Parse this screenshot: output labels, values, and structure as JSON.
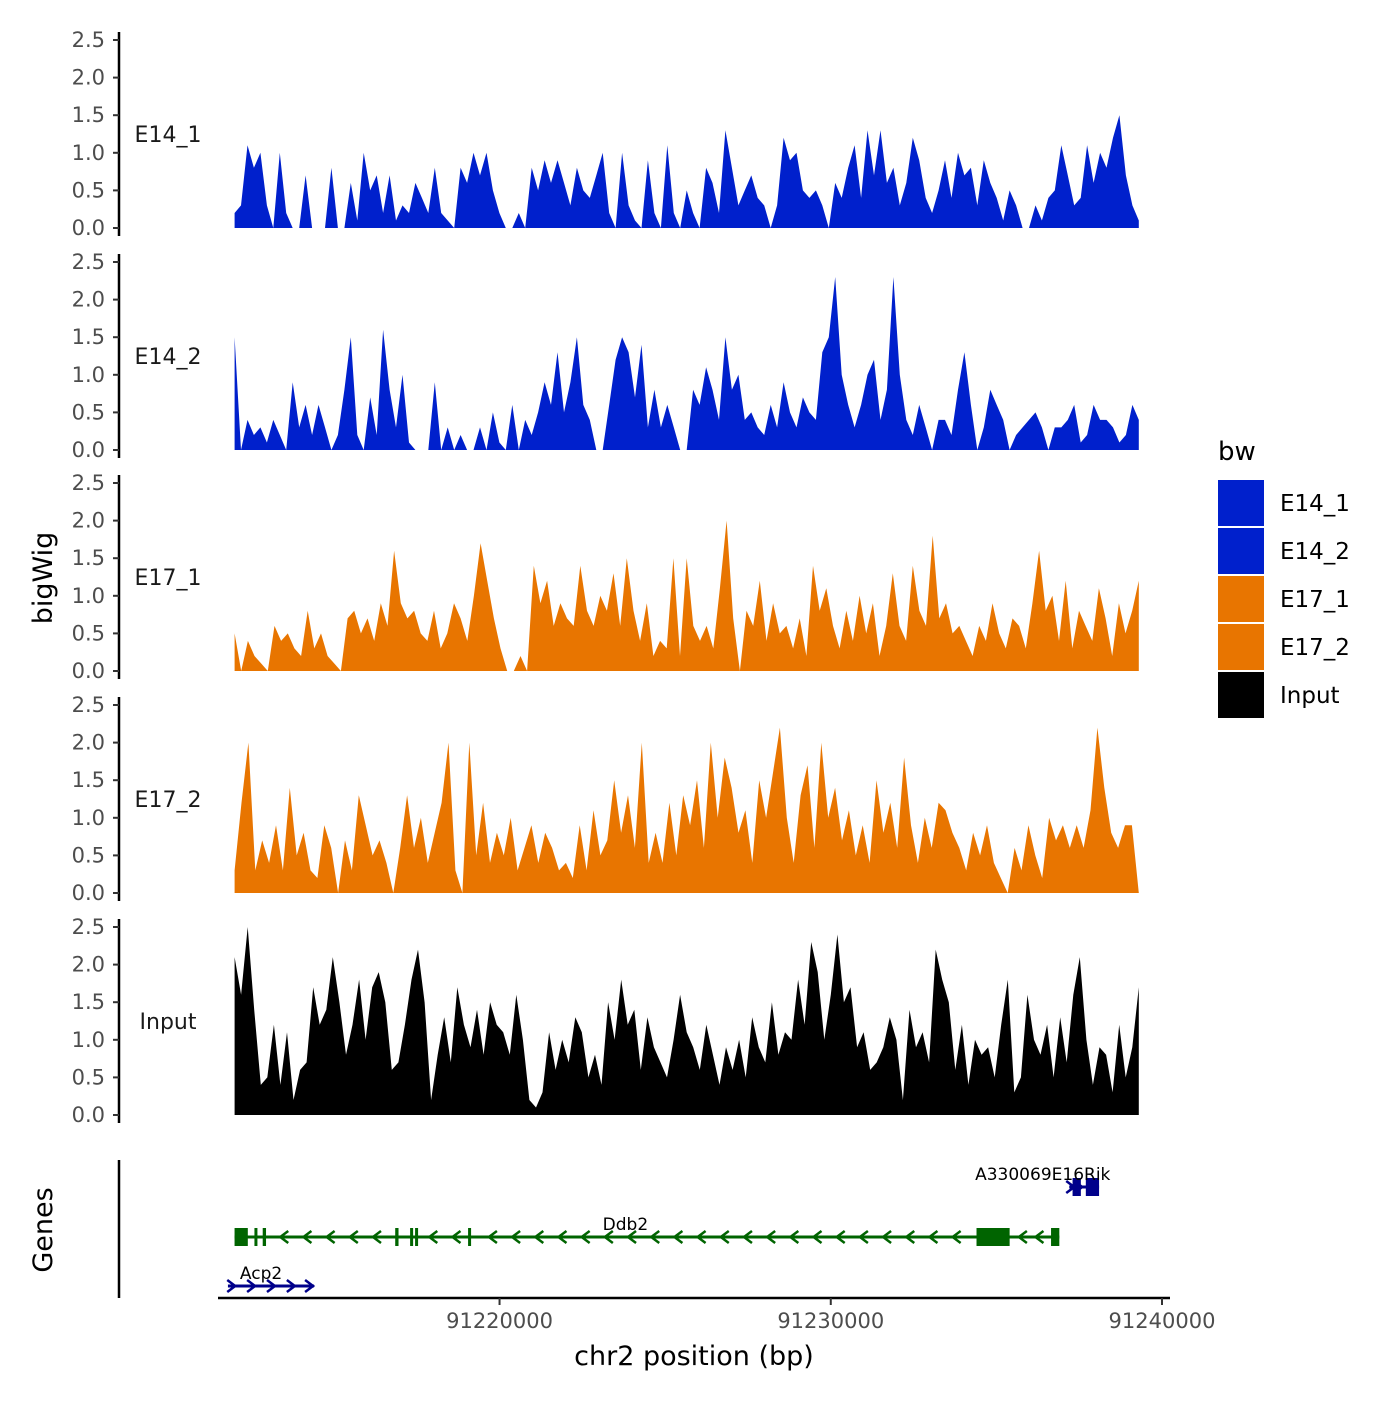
{
  "chart_data": {
    "type": "area",
    "title": "",
    "ylabel": "bigWig",
    "xlabel": "chr2 position (bp)",
    "genes_label": "Genes",
    "xlim": [
      91211500,
      91240000
    ],
    "ylim": [
      0,
      2.5
    ],
    "yticks": [
      "0.0",
      "0.5",
      "1.0",
      "1.5",
      "2.0",
      "2.5"
    ],
    "xticks": [
      {
        "value": 91220000,
        "label": "91220000"
      },
      {
        "value": 91230000,
        "label": "91230000"
      },
      {
        "value": 91240000,
        "label": "91240000"
      }
    ],
    "x_start": 91212000,
    "x_end": 91239300,
    "series": [
      {
        "name": "E14_1",
        "color": "#0020CC",
        "values": [
          0.2,
          0.3,
          1.1,
          0.8,
          1.0,
          0.3,
          0.0,
          1.0,
          0.2,
          0.0,
          0.0,
          0.7,
          0.0,
          0.0,
          0.0,
          0.8,
          0.0,
          0.0,
          0.6,
          0.1,
          1.0,
          0.5,
          0.7,
          0.2,
          0.7,
          0.1,
          0.3,
          0.2,
          0.6,
          0.4,
          0.2,
          0.8,
          0.2,
          0.1,
          0.0,
          0.8,
          0.6,
          1.0,
          0.7,
          1.0,
          0.5,
          0.2,
          0.0,
          0.0,
          0.2,
          0.0,
          0.8,
          0.5,
          0.9,
          0.6,
          0.9,
          0.6,
          0.3,
          0.8,
          0.5,
          0.4,
          0.7,
          1.0,
          0.2,
          0.0,
          1.0,
          0.3,
          0.1,
          0.0,
          0.9,
          0.2,
          0.0,
          1.1,
          0.2,
          0.0,
          0.5,
          0.2,
          0.0,
          0.8,
          0.6,
          0.2,
          1.3,
          0.8,
          0.3,
          0.5,
          0.7,
          0.4,
          0.3,
          0.0,
          0.3,
          1.2,
          0.9,
          1.0,
          0.5,
          0.4,
          0.5,
          0.3,
          0.0,
          0.6,
          0.4,
          0.8,
          1.1,
          0.4,
          1.3,
          0.7,
          1.3,
          0.6,
          0.8,
          0.3,
          0.6,
          1.2,
          0.9,
          0.4,
          0.2,
          0.5,
          0.9,
          0.4,
          1.0,
          0.7,
          0.8,
          0.3,
          0.9,
          0.6,
          0.4,
          0.1,
          0.5,
          0.3,
          0.0,
          0.0,
          0.3,
          0.1,
          0.4,
          0.5,
          1.1,
          0.7,
          0.3,
          0.4,
          1.1,
          0.6,
          1.0,
          0.8,
          1.2,
          1.5,
          0.7,
          0.3,
          0.1
        ]
      },
      {
        "name": "E14_2",
        "color": "#0020CC",
        "values": [
          1.5,
          0.0,
          0.4,
          0.2,
          0.3,
          0.1,
          0.4,
          0.2,
          0.0,
          0.9,
          0.3,
          0.6,
          0.2,
          0.6,
          0.3,
          0.0,
          0.2,
          0.8,
          1.5,
          0.2,
          0.0,
          0.7,
          0.2,
          1.6,
          0.8,
          0.3,
          1.0,
          0.1,
          0.0,
          0.0,
          0.0,
          0.9,
          0.0,
          0.3,
          0.0,
          0.2,
          0.0,
          0.0,
          0.3,
          0.0,
          0.5,
          0.1,
          0.0,
          0.6,
          0.0,
          0.4,
          0.2,
          0.5,
          0.9,
          0.6,
          1.3,
          0.5,
          0.9,
          1.5,
          0.6,
          0.4,
          0.0,
          0.0,
          0.6,
          1.2,
          1.5,
          1.3,
          0.7,
          1.4,
          0.3,
          0.8,
          0.3,
          0.6,
          0.3,
          0.0,
          0.0,
          0.8,
          0.6,
          1.1,
          0.8,
          0.4,
          1.5,
          0.8,
          1.0,
          0.4,
          0.5,
          0.3,
          0.2,
          0.6,
          0.3,
          0.9,
          0.5,
          0.3,
          0.7,
          0.5,
          0.4,
          1.3,
          1.5,
          2.3,
          1.0,
          0.6,
          0.3,
          0.6,
          1.0,
          1.2,
          0.4,
          0.8,
          2.3,
          1.0,
          0.4,
          0.2,
          0.6,
          0.3,
          0.0,
          0.4,
          0.4,
          0.2,
          0.8,
          1.3,
          0.6,
          0.0,
          0.3,
          0.8,
          0.6,
          0.4,
          0.0,
          0.2,
          0.3,
          0.4,
          0.5,
          0.3,
          0.0,
          0.3,
          0.3,
          0.4,
          0.6,
          0.1,
          0.2,
          0.6,
          0.4,
          0.4,
          0.3,
          0.1,
          0.2,
          0.6,
          0.4
        ]
      },
      {
        "name": "E17_1",
        "color": "#E87500",
        "values": [
          0.5,
          0.0,
          0.4,
          0.2,
          0.1,
          0.0,
          0.6,
          0.4,
          0.5,
          0.3,
          0.2,
          0.8,
          0.3,
          0.5,
          0.2,
          0.1,
          0.0,
          0.7,
          0.8,
          0.5,
          0.7,
          0.4,
          0.9,
          0.6,
          1.6,
          0.9,
          0.7,
          0.8,
          0.5,
          0.4,
          0.8,
          0.3,
          0.5,
          0.9,
          0.7,
          0.4,
          1.0,
          1.7,
          1.2,
          0.7,
          0.3,
          0.0,
          0.0,
          0.2,
          0.0,
          1.4,
          0.9,
          1.2,
          0.6,
          0.9,
          0.7,
          0.6,
          1.4,
          0.8,
          0.6,
          1.0,
          0.8,
          1.3,
          0.6,
          1.5,
          0.8,
          0.4,
          0.9,
          0.2,
          0.4,
          0.3,
          1.5,
          0.2,
          1.5,
          0.6,
          0.4,
          0.6,
          0.3,
          1.1,
          2.0,
          0.7,
          0.0,
          0.8,
          0.6,
          1.2,
          0.4,
          0.9,
          0.5,
          0.6,
          0.3,
          0.7,
          0.2,
          1.4,
          0.8,
          1.1,
          0.6,
          0.3,
          0.8,
          0.4,
          1.0,
          0.5,
          0.9,
          0.2,
          0.6,
          1.3,
          0.6,
          0.4,
          1.4,
          0.8,
          0.6,
          1.8,
          0.7,
          0.9,
          0.5,
          0.6,
          0.4,
          0.2,
          0.6,
          0.4,
          0.9,
          0.5,
          0.3,
          0.7,
          0.6,
          0.3,
          0.9,
          1.6,
          0.8,
          1.0,
          0.4,
          1.2,
          0.3,
          0.8,
          0.6,
          0.4,
          1.1,
          0.7,
          0.2,
          0.9,
          0.5,
          0.8,
          1.2
        ]
      },
      {
        "name": "E17_2",
        "color": "#E87500",
        "values": [
          0.3,
          1.2,
          2.0,
          0.3,
          0.7,
          0.4,
          0.9,
          0.3,
          1.4,
          0.5,
          0.8,
          0.3,
          0.2,
          0.9,
          0.6,
          0.0,
          0.7,
          0.3,
          1.3,
          0.9,
          0.5,
          0.7,
          0.4,
          0.0,
          0.6,
          1.3,
          0.6,
          1.0,
          0.4,
          0.8,
          1.2,
          2.0,
          0.3,
          0.0,
          2.0,
          0.5,
          1.2,
          0.4,
          0.8,
          0.5,
          1.0,
          0.3,
          0.6,
          0.9,
          0.4,
          0.8,
          0.6,
          0.3,
          0.4,
          0.2,
          0.9,
          0.3,
          1.1,
          0.5,
          0.7,
          1.5,
          0.8,
          1.3,
          0.6,
          2.0,
          0.4,
          0.8,
          0.4,
          1.2,
          0.5,
          1.3,
          0.9,
          1.5,
          0.6,
          2.0,
          1.0,
          1.8,
          1.4,
          0.8,
          1.1,
          0.4,
          1.5,
          1.0,
          1.6,
          2.2,
          1.0,
          0.4,
          1.3,
          1.7,
          0.6,
          2.0,
          1.0,
          1.4,
          0.7,
          1.1,
          0.5,
          0.9,
          0.4,
          1.5,
          0.8,
          1.2,
          0.6,
          1.8,
          0.9,
          0.4,
          1.0,
          0.6,
          1.2,
          1.1,
          0.8,
          0.6,
          0.3,
          0.8,
          0.5,
          0.9,
          0.4,
          0.2,
          0.0,
          0.6,
          0.3,
          0.9,
          0.5,
          0.2,
          1.0,
          0.7,
          0.9,
          0.6,
          0.9,
          0.6,
          1.1,
          2.2,
          1.4,
          0.8,
          0.6,
          0.9,
          0.9,
          0.0
        ]
      },
      {
        "name": "Input",
        "color": "#000000",
        "values": [
          2.1,
          1.6,
          2.5,
          1.4,
          0.4,
          0.5,
          1.2,
          0.4,
          1.1,
          0.2,
          0.6,
          0.7,
          1.7,
          1.2,
          1.4,
          2.1,
          1.5,
          0.8,
          1.2,
          1.8,
          1.0,
          1.7,
          1.9,
          1.5,
          0.6,
          0.7,
          1.2,
          1.8,
          2.2,
          1.5,
          0.2,
          0.8,
          1.3,
          0.7,
          1.7,
          1.2,
          0.9,
          1.4,
          0.8,
          1.5,
          1.2,
          1.1,
          0.8,
          1.6,
          1.0,
          0.2,
          0.1,
          0.3,
          1.1,
          0.6,
          1.0,
          0.7,
          1.3,
          1.1,
          0.5,
          0.8,
          0.4,
          1.5,
          1.0,
          1.8,
          1.2,
          1.4,
          0.6,
          1.3,
          0.9,
          0.7,
          0.5,
          1.0,
          1.6,
          1.1,
          0.9,
          0.6,
          1.2,
          0.8,
          0.4,
          0.9,
          0.6,
          1.0,
          0.5,
          1.3,
          0.9,
          0.7,
          1.5,
          0.8,
          1.1,
          1.0,
          1.8,
          1.2,
          2.3,
          1.9,
          1.0,
          1.6,
          2.4,
          1.5,
          1.7,
          0.9,
          1.1,
          0.6,
          0.7,
          0.9,
          1.3,
          1.0,
          0.2,
          1.4,
          0.9,
          1.1,
          0.7,
          2.2,
          1.8,
          1.5,
          0.6,
          1.2,
          0.4,
          1.0,
          0.8,
          0.9,
          0.5,
          1.2,
          1.8,
          0.3,
          0.5,
          1.6,
          1.0,
          0.8,
          1.2,
          0.5,
          1.3,
          0.7,
          1.6,
          2.1,
          1.0,
          0.4,
          0.9,
          0.8,
          0.3,
          1.2,
          0.5,
          0.9,
          1.7
        ]
      }
    ],
    "genes": [
      {
        "name": "A330069E16Rik",
        "strand": "+",
        "start": 91237200,
        "end": 91238100,
        "color": "#00008B",
        "row": 0,
        "exons": [
          [
            91237300,
            91237550
          ],
          [
            91237700,
            91238100
          ]
        ],
        "arrows": [
          91237230,
          91237470
        ]
      },
      {
        "name": "Ddb2",
        "strand": "-",
        "start": 91212000,
        "end": 91236900,
        "color": "#006400",
        "row": 1,
        "exons": [
          [
            91212000,
            91212400
          ],
          [
            91212600,
            91212680
          ],
          [
            91212850,
            91212950
          ],
          [
            91216850,
            91216950
          ],
          [
            91217300,
            91217350
          ],
          [
            91217450,
            91217530
          ],
          [
            91219050,
            91219120
          ],
          [
            91234400,
            91235400
          ],
          [
            91236650,
            91236900
          ]
        ],
        "arrows": [
          91213500,
          91214200,
          91214900,
          91215600,
          91216300,
          91218000,
          91218700,
          91219800,
          91220500,
          91221200,
          91221900,
          91222600,
          91223300,
          91224000,
          91224700,
          91225400,
          91226100,
          91226800,
          91227500,
          91228200,
          91228900,
          91229600,
          91230300,
          91231000,
          91231700,
          91232400,
          91233100,
          91233800,
          91235800,
          91236300
        ]
      },
      {
        "name": "Acp2",
        "strand": "+",
        "start": 91211800,
        "end": 91214400,
        "color": "#00008B",
        "row": 2,
        "exons": [],
        "arrows": [
          91211900,
          91212500,
          91213100,
          91213700,
          91214250
        ]
      }
    ]
  }
}
